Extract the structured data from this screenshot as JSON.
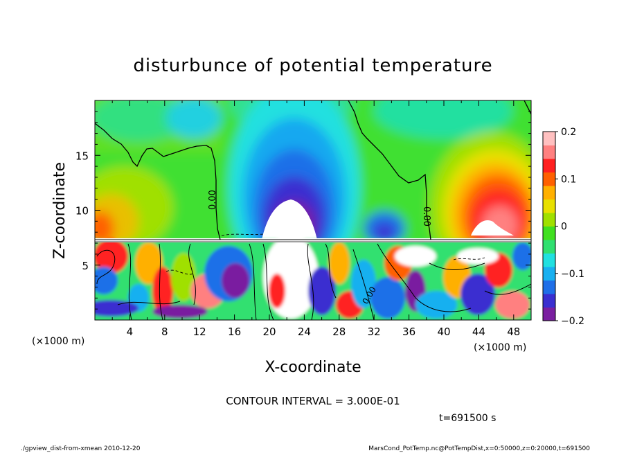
{
  "chart_data": {
    "type": "heatmap",
    "title": "disturbunce of potential temperature",
    "xlabel": "X-coordinate",
    "ylabel": "Z-coordinate",
    "x_unit_left": "(×1000 m)",
    "x_unit_right": "(×1000 m)",
    "x_unit_y": "(×1000 m)",
    "xlim": [
      0,
      50
    ],
    "ylim": [
      0,
      20
    ],
    "xticks": [
      4,
      8,
      12,
      16,
      20,
      24,
      28,
      32,
      36,
      40,
      44,
      48
    ],
    "yticks": [
      5,
      10,
      15
    ],
    "colorbar": {
      "levels": [
        -0.2,
        -0.1,
        0,
        0.1,
        0.2
      ],
      "labels": [
        "−0.2",
        "−0.1",
        "0",
        "0.1",
        "0.2"
      ],
      "vmin": -0.2,
      "vmax": 0.2,
      "colors": [
        "#7a1fa0",
        "#3a2fd0",
        "#1f6fe8",
        "#18b0f0",
        "#20e0e0",
        "#30e070",
        "#40e020",
        "#a0e000",
        "#e8e000",
        "#ffb000",
        "#ff6000",
        "#ff2020",
        "#ff8080",
        "#ffc0c0"
      ]
    },
    "contour_label": "0.00",
    "contour_interval": "CONTOUR INTERVAL = 3.000E-01",
    "time": "t=691500 s",
    "footer_left": "./gpview_dist-from-xmean  2010-12-20",
    "footer_right": "MarsCond_PotTemp.nc@PotTempDist,x=0:50000,z=0:20000,t=691500"
  }
}
